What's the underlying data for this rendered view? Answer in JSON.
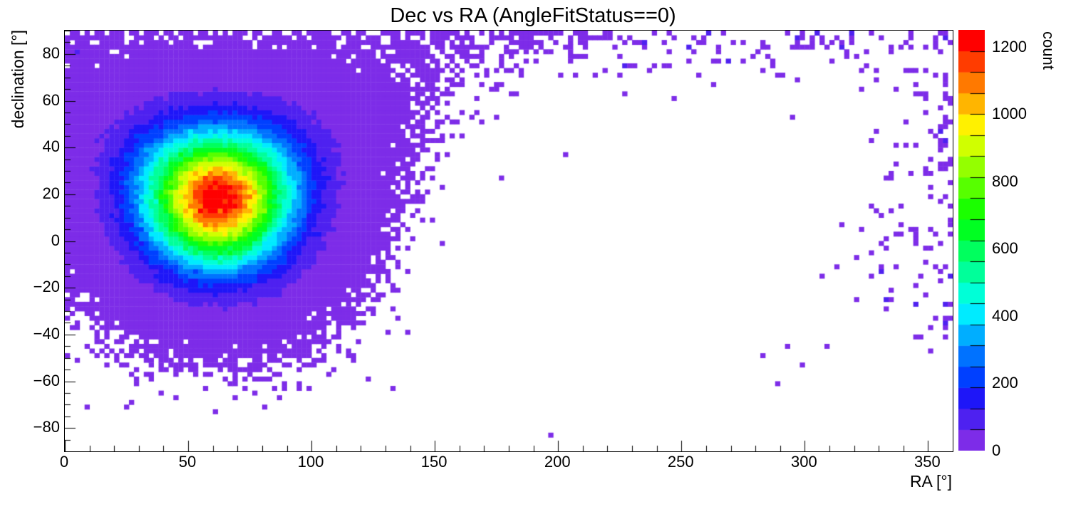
{
  "figure": {
    "background": "#ffffff",
    "frame_border_color": "#000000"
  },
  "chart_data": {
    "type": "heatmap",
    "title": "Dec vs RA (AngleFitStatus==0)",
    "xlabel": "RA [°]",
    "ylabel": "declination [°]",
    "zlabel": "count",
    "xlim": [
      0,
      360
    ],
    "ylim": [
      -90,
      90
    ],
    "zlim": [
      0,
      1250
    ],
    "x_ticks": [
      0,
      50,
      100,
      150,
      200,
      250,
      300,
      350
    ],
    "y_ticks": [
      -80,
      -60,
      -40,
      -20,
      0,
      20,
      40,
      60,
      80
    ],
    "y_tick_labels": [
      "−80",
      "−60",
      "−40",
      "−20",
      "0",
      "20",
      "40",
      "60",
      "80"
    ],
    "z_ticks": [
      0,
      200,
      400,
      600,
      800,
      1000,
      1200
    ],
    "x_minor_step_deg": 10,
    "y_minor_step_deg": 5,
    "bin_size_deg": {
      "ra": 2,
      "dec": 2
    },
    "grid": false,
    "colorbar_position": "right",
    "empty_bin_color": "#ffffff",
    "palette": [
      "#7D2CE8",
      "#4E21F0",
      "#1E16F8",
      "#0040FF",
      "#0072FF",
      "#00AEFF",
      "#00EBFF",
      "#00FFD7",
      "#00FF9A",
      "#00FF5E",
      "#00FF22",
      "#1BFF00",
      "#57FF00",
      "#94FF00",
      "#D0FF00",
      "#FFF100",
      "#FFB500",
      "#FF7900",
      "#FF3C00",
      "#FF0000"
    ],
    "distribution": {
      "type": "spherical-gaussian-blob-plus-background",
      "blob": {
        "center_ra_deg": 62,
        "center_dec_deg": 18,
        "sigma_deg": 19,
        "peak_count": 1250
      },
      "background": {
        "top_band_min_dec": 70,
        "top_p0": 0.05,
        "top_p1": 0.22,
        "right_band_min_ra": 290,
        "right_p_max": 0.14,
        "right_edge_min_ra": 354,
        "right_edge_extra_p": 0.08,
        "floor_p": 0.0015
      },
      "seed": 20240613
    }
  }
}
